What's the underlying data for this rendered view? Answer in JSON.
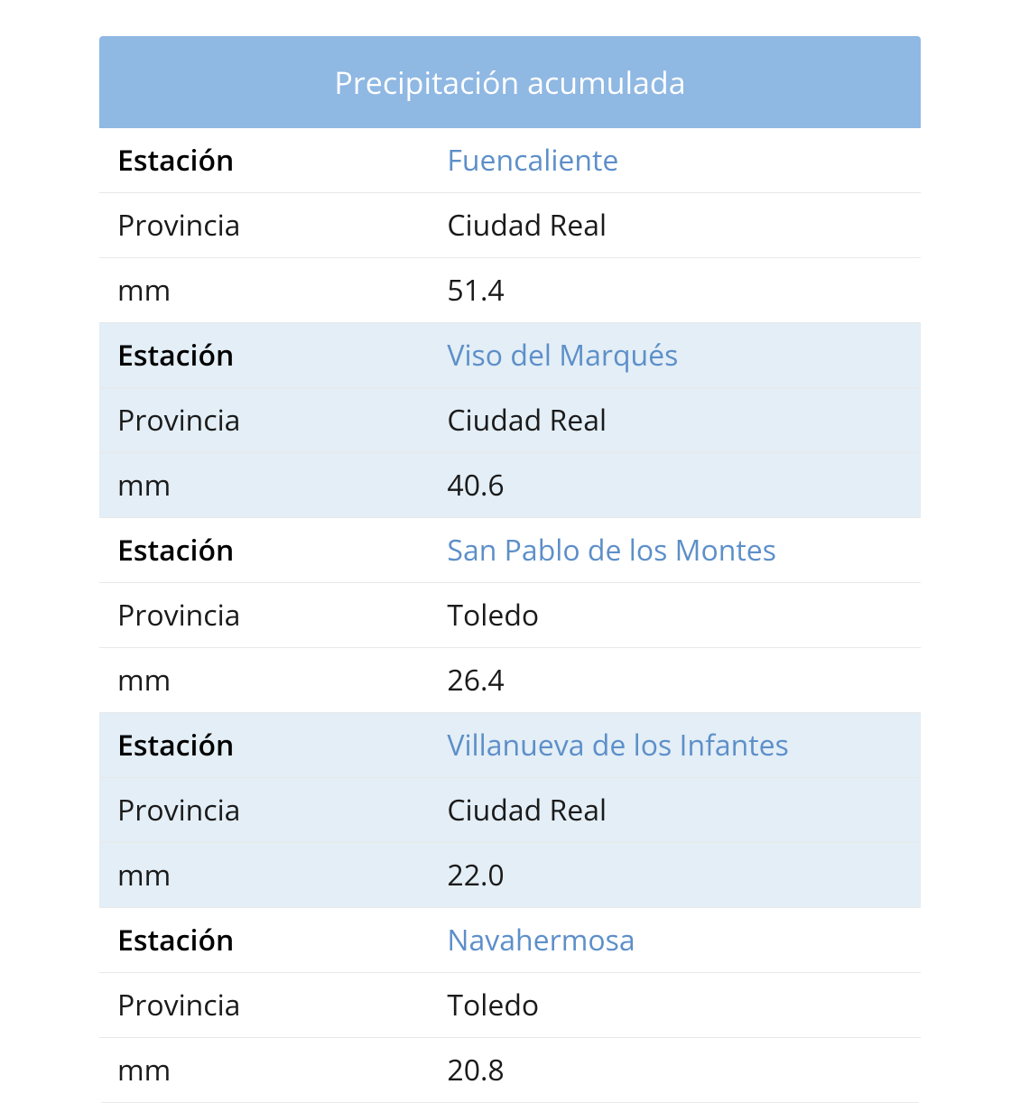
{
  "table": {
    "title": "Precipitación acumulada",
    "labels": {
      "estacion": "Estación",
      "provincia": "Provincia",
      "mm": "mm"
    },
    "rows": [
      {
        "estacion": "Fuencaliente",
        "provincia": "Ciudad Real",
        "mm": "51.4"
      },
      {
        "estacion": "Viso del Marqués",
        "provincia": "Ciudad Real",
        "mm": "40.6"
      },
      {
        "estacion": "San Pablo de los Montes",
        "provincia": "Toledo",
        "mm": "26.4"
      },
      {
        "estacion": "Villanueva de los Infantes",
        "provincia": "Ciudad Real",
        "mm": "22.0"
      },
      {
        "estacion": "Navahermosa",
        "provincia": "Toledo",
        "mm": "20.8"
      }
    ],
    "colors": {
      "header_bg": "#8fb8e3",
      "header_text": "#ffffff",
      "alt_row_bg": "#e3eef6",
      "row_bg": "#ffffff",
      "link_text": "#5d8fc9",
      "text": "#1a1a1a",
      "border": "#e8e8e8"
    }
  }
}
